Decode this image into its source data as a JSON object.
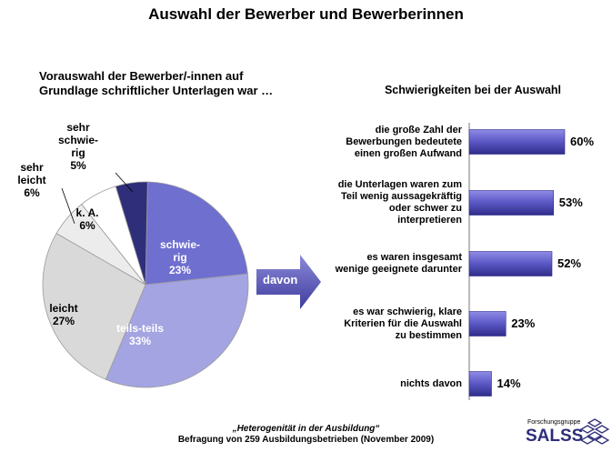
{
  "title": "Auswahl der Bewerber und Bewerberinnen",
  "left_subtitle": "Vorauswahl der Bewerber/-innen auf\nGrundlage schriftlicher Unterlagen war …",
  "right_subtitle": "Schwierigkeiten bei der Auswahl",
  "arrow_label": "davon",
  "footer": {
    "line1": "„Heterogenität in der Ausbildung“",
    "line2": "Befragung von 259 Ausbildungsbetrieben (November 2009)"
  },
  "logo": {
    "small": "Forschungsgruppe",
    "big": "SALSS"
  },
  "colors": {
    "schwierig": "#6f6fd0",
    "teils": "#a4a4e2",
    "leicht": "#d9d9d9",
    "sehr_leicht": "#ececec",
    "ka": "#ffffff",
    "sehr_schwierig": "#2e2e7a",
    "bar": "#5a57c4"
  },
  "chart_data": [
    {
      "type": "pie",
      "title": "Vorauswahl der Bewerber/-innen auf Grundlage schriftlicher Unterlagen war …",
      "slices": [
        {
          "label": "schwie-\nrig",
          "value_label": "23%",
          "value": 23,
          "color_key": "schwierig",
          "light": true
        },
        {
          "label": "teils-teils",
          "value_label": "33%",
          "value": 33,
          "color_key": "teils",
          "light": true
        },
        {
          "label": "leicht",
          "value_label": "27%",
          "value": 27,
          "color_key": "leicht",
          "light": false
        },
        {
          "label": "sehr\nleicht",
          "value_label": "6%",
          "value": 6,
          "color_key": "sehr_leicht",
          "light": false
        },
        {
          "label": "k. A.",
          "value_label": "6%",
          "value": 6,
          "color_key": "ka",
          "light": false
        },
        {
          "label": "sehr\nschwie-\nrig",
          "value_label": "5%",
          "value": 5,
          "color_key": "sehr_schwierig",
          "light": false
        }
      ]
    },
    {
      "type": "bar",
      "title": "Schwierigkeiten bei der Auswahl",
      "orientation": "horizontal",
      "categories": [
        "die große Zahl der\nBewerbungen bedeutete\neinen großen Aufwand",
        "die Unterlagen waren zum\nTeil wenig aussagekräftig\noder schwer zu\ninterpretieren",
        "es waren insgesamt\nwenige geeignete darunter",
        "es war schwierig, klare\nKriterien für die Auswahl\nzu bestimmen",
        "nichts davon"
      ],
      "values": [
        60,
        53,
        52,
        23,
        14
      ],
      "value_labels": [
        "60%",
        "53%",
        "52%",
        "23%",
        "14%"
      ]
    }
  ]
}
